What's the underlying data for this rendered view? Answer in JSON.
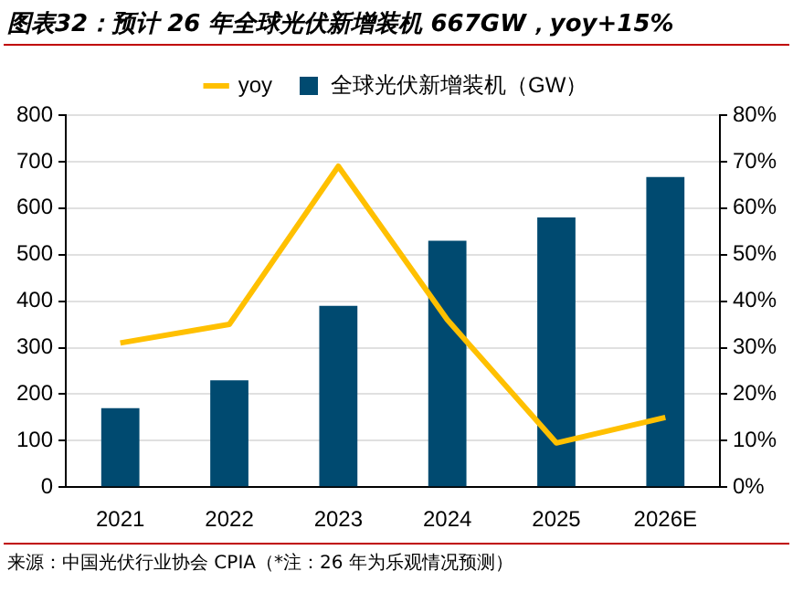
{
  "chart_data": {
    "type": "bar",
    "title": "图表32：预计 26 年全球光伏新增装机 667GW，yoy+15%",
    "categories": [
      "2021",
      "2022",
      "2023",
      "2024",
      "2025",
      "2026E"
    ],
    "series": [
      {
        "name": "全球光伏新增装机（GW）",
        "color": "#004a70",
        "values": [
          170,
          230,
          390,
          530,
          580,
          667
        ]
      },
      {
        "name": "yoy",
        "type": "line",
        "axis": "y2",
        "color": "#ffc000",
        "values": [
          31,
          35,
          69,
          36,
          9.5,
          15
        ]
      }
    ],
    "ylim": [
      0,
      800
    ],
    "yticks": [
      0,
      100,
      200,
      300,
      400,
      500,
      600,
      700,
      800
    ],
    "y2lim": [
      0,
      80
    ],
    "y2ticks": [
      {
        "value": 0,
        "label": "0%"
      },
      {
        "value": 10,
        "label": "10%"
      },
      {
        "value": 20,
        "label": "20%"
      },
      {
        "value": 30,
        "label": "30%"
      },
      {
        "value": 40,
        "label": "40%"
      },
      {
        "value": 50,
        "label": "50%"
      },
      {
        "value": 60,
        "label": "60%"
      },
      {
        "value": 70,
        "label": "70%"
      },
      {
        "value": 80,
        "label": "80%"
      }
    ],
    "grid": "y",
    "legend": "top",
    "marker": "none",
    "annotations": [
      "来源：中国光伏行业协会 CPIA（*注：26 年为乐观情况预测）"
    ]
  }
}
